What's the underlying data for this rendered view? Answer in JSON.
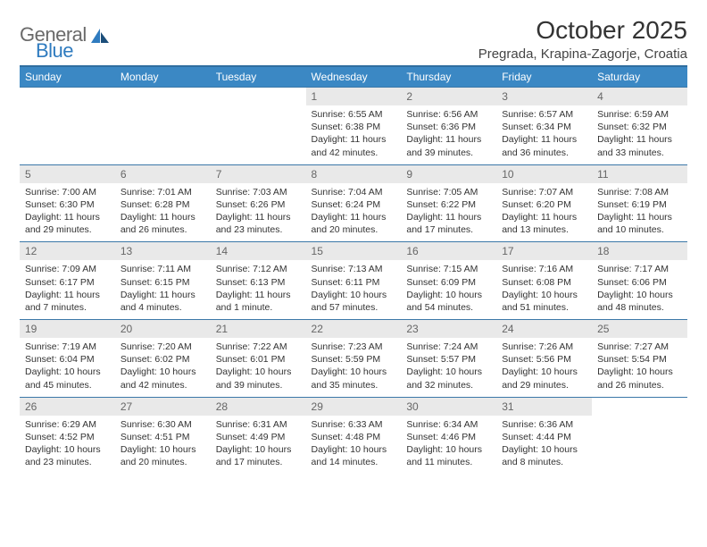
{
  "logo": {
    "word1": "General",
    "word2": "Blue"
  },
  "title": "October 2025",
  "location": "Pregrada, Krapina-Zagorje, Croatia",
  "colors": {
    "header_bg": "#3b88c4",
    "header_border": "#2f6ea0",
    "row_border": "#3b78a8",
    "daynum_bg": "#e9e9e9",
    "daynum_text": "#666666",
    "body_text": "#333333",
    "logo_grey": "#6a6a6a",
    "logo_blue": "#2f7bbf"
  },
  "day_headers": [
    "Sunday",
    "Monday",
    "Tuesday",
    "Wednesday",
    "Thursday",
    "Friday",
    "Saturday"
  ],
  "weeks": [
    [
      null,
      null,
      null,
      {
        "n": "1",
        "sr": "6:55 AM",
        "ss": "6:38 PM",
        "dl": "11 hours and 42 minutes."
      },
      {
        "n": "2",
        "sr": "6:56 AM",
        "ss": "6:36 PM",
        "dl": "11 hours and 39 minutes."
      },
      {
        "n": "3",
        "sr": "6:57 AM",
        "ss": "6:34 PM",
        "dl": "11 hours and 36 minutes."
      },
      {
        "n": "4",
        "sr": "6:59 AM",
        "ss": "6:32 PM",
        "dl": "11 hours and 33 minutes."
      }
    ],
    [
      {
        "n": "5",
        "sr": "7:00 AM",
        "ss": "6:30 PM",
        "dl": "11 hours and 29 minutes."
      },
      {
        "n": "6",
        "sr": "7:01 AM",
        "ss": "6:28 PM",
        "dl": "11 hours and 26 minutes."
      },
      {
        "n": "7",
        "sr": "7:03 AM",
        "ss": "6:26 PM",
        "dl": "11 hours and 23 minutes."
      },
      {
        "n": "8",
        "sr": "7:04 AM",
        "ss": "6:24 PM",
        "dl": "11 hours and 20 minutes."
      },
      {
        "n": "9",
        "sr": "7:05 AM",
        "ss": "6:22 PM",
        "dl": "11 hours and 17 minutes."
      },
      {
        "n": "10",
        "sr": "7:07 AM",
        "ss": "6:20 PM",
        "dl": "11 hours and 13 minutes."
      },
      {
        "n": "11",
        "sr": "7:08 AM",
        "ss": "6:19 PM",
        "dl": "11 hours and 10 minutes."
      }
    ],
    [
      {
        "n": "12",
        "sr": "7:09 AM",
        "ss": "6:17 PM",
        "dl": "11 hours and 7 minutes."
      },
      {
        "n": "13",
        "sr": "7:11 AM",
        "ss": "6:15 PM",
        "dl": "11 hours and 4 minutes."
      },
      {
        "n": "14",
        "sr": "7:12 AM",
        "ss": "6:13 PM",
        "dl": "11 hours and 1 minute."
      },
      {
        "n": "15",
        "sr": "7:13 AM",
        "ss": "6:11 PM",
        "dl": "10 hours and 57 minutes."
      },
      {
        "n": "16",
        "sr": "7:15 AM",
        "ss": "6:09 PM",
        "dl": "10 hours and 54 minutes."
      },
      {
        "n": "17",
        "sr": "7:16 AM",
        "ss": "6:08 PM",
        "dl": "10 hours and 51 minutes."
      },
      {
        "n": "18",
        "sr": "7:17 AM",
        "ss": "6:06 PM",
        "dl": "10 hours and 48 minutes."
      }
    ],
    [
      {
        "n": "19",
        "sr": "7:19 AM",
        "ss": "6:04 PM",
        "dl": "10 hours and 45 minutes."
      },
      {
        "n": "20",
        "sr": "7:20 AM",
        "ss": "6:02 PM",
        "dl": "10 hours and 42 minutes."
      },
      {
        "n": "21",
        "sr": "7:22 AM",
        "ss": "6:01 PM",
        "dl": "10 hours and 39 minutes."
      },
      {
        "n": "22",
        "sr": "7:23 AM",
        "ss": "5:59 PM",
        "dl": "10 hours and 35 minutes."
      },
      {
        "n": "23",
        "sr": "7:24 AM",
        "ss": "5:57 PM",
        "dl": "10 hours and 32 minutes."
      },
      {
        "n": "24",
        "sr": "7:26 AM",
        "ss": "5:56 PM",
        "dl": "10 hours and 29 minutes."
      },
      {
        "n": "25",
        "sr": "7:27 AM",
        "ss": "5:54 PM",
        "dl": "10 hours and 26 minutes."
      }
    ],
    [
      {
        "n": "26",
        "sr": "6:29 AM",
        "ss": "4:52 PM",
        "dl": "10 hours and 23 minutes."
      },
      {
        "n": "27",
        "sr": "6:30 AM",
        "ss": "4:51 PM",
        "dl": "10 hours and 20 minutes."
      },
      {
        "n": "28",
        "sr": "6:31 AM",
        "ss": "4:49 PM",
        "dl": "10 hours and 17 minutes."
      },
      {
        "n": "29",
        "sr": "6:33 AM",
        "ss": "4:48 PM",
        "dl": "10 hours and 14 minutes."
      },
      {
        "n": "30",
        "sr": "6:34 AM",
        "ss": "4:46 PM",
        "dl": "10 hours and 11 minutes."
      },
      {
        "n": "31",
        "sr": "6:36 AM",
        "ss": "4:44 PM",
        "dl": "10 hours and 8 minutes."
      },
      null
    ]
  ],
  "labels": {
    "sunrise": "Sunrise:",
    "sunset": "Sunset:",
    "daylight": "Daylight:"
  }
}
